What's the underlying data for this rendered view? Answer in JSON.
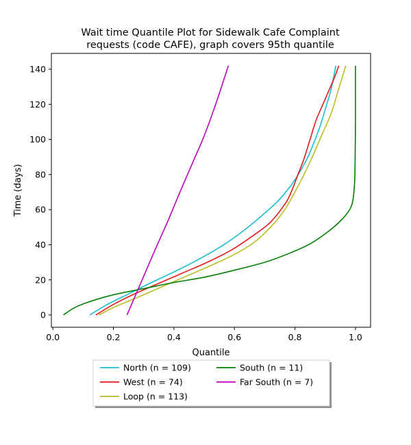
{
  "chart_data": {
    "type": "line",
    "title": "Wait time Quantile Plot for Sidewalk Cafe Complaint\nrequests (code CAFE), graph covers 95th quantile",
    "xlabel": "Quantile",
    "ylabel": "Time (days)",
    "xlim": [
      -0.005,
      1.05
    ],
    "ylim": [
      -7,
      149
    ],
    "xticks": [
      0.0,
      0.2,
      0.4,
      0.6,
      0.8,
      1.0
    ],
    "xtick_labels": [
      "0.0",
      "0.2",
      "0.4",
      "0.6",
      "0.8",
      "1.0"
    ],
    "yticks": [
      0,
      20,
      40,
      60,
      80,
      100,
      120,
      140
    ],
    "ytick_labels": [
      "0",
      "20",
      "40",
      "60",
      "80",
      "100",
      "120",
      "140"
    ],
    "grid": false,
    "legend": {
      "placement": "below the plot",
      "columns": 2
    },
    "series": [
      {
        "name": "North (n = 109)",
        "color": "#17becf",
        "x": [
          0.122,
          0.18,
          0.25,
          0.32,
          0.4,
          0.48,
          0.56,
          0.63,
          0.7,
          0.75,
          0.8,
          0.84,
          0.86,
          0.88,
          0.9,
          0.92,
          0.935
        ],
        "y": [
          0,
          6,
          12,
          18,
          24.5,
          31.5,
          39.5,
          48,
          58,
          66,
          77,
          89,
          97,
          106,
          117,
          129,
          142
        ]
      },
      {
        "name": "West (n = 74)",
        "color": "#e41a1c",
        "x": [
          0.142,
          0.2,
          0.27,
          0.35,
          0.43,
          0.51,
          0.59,
          0.66,
          0.72,
          0.77,
          0.79,
          0.81,
          0.83,
          0.85,
          0.87,
          0.89,
          0.91,
          0.93,
          0.945
        ],
        "y": [
          0,
          6,
          12,
          18,
          24,
          30,
          37,
          45,
          53,
          64,
          71,
          80,
          89,
          100,
          111,
          119,
          127,
          135,
          142
        ]
      },
      {
        "name": "Loop (n = 113)",
        "color": "#bcbd22",
        "x": [
          0.152,
          0.21,
          0.28,
          0.36,
          0.44,
          0.52,
          0.6,
          0.67,
          0.73,
          0.77,
          0.8,
          0.83,
          0.86,
          0.89,
          0.92,
          0.945,
          0.968
        ],
        "y": [
          0,
          5,
          10,
          16,
          22,
          28,
          34.5,
          42,
          52,
          61,
          70,
          80,
          91,
          103,
          115,
          129,
          142
        ]
      },
      {
        "name": "South (n = 11)",
        "color": "#008000",
        "x": [
          0.035,
          0.07,
          0.12,
          0.2,
          0.3,
          0.4,
          0.5,
          0.6,
          0.7,
          0.78,
          0.85,
          0.91,
          0.95,
          0.975,
          0.99,
          0.997,
          0.999,
          1.0,
          1.0,
          1.0
        ],
        "y": [
          0,
          4,
          7.5,
          11.5,
          15,
          18.5,
          21.5,
          25.5,
          30,
          35,
          40.5,
          47.5,
          53.5,
          58.5,
          64,
          75,
          90,
          110,
          130,
          142
        ]
      },
      {
        "name": "Far South (n = 7)",
        "color": "#bf00bf",
        "x": [
          0.245,
          0.27,
          0.3,
          0.34,
          0.38,
          0.42,
          0.46,
          0.5,
          0.54,
          0.58
        ],
        "y": [
          0,
          10,
          22,
          38,
          53.5,
          70,
          86,
          102,
          121,
          142
        ]
      }
    ]
  }
}
